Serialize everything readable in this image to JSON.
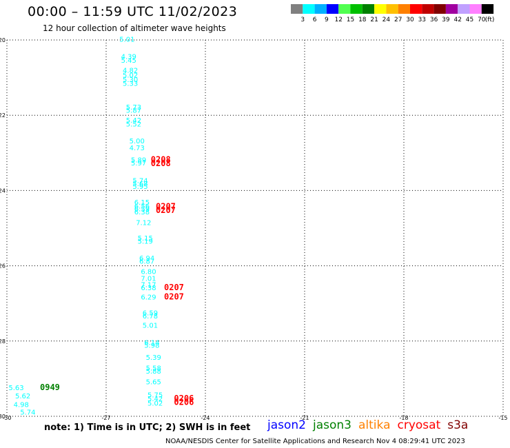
{
  "header": {
    "title": "00:00 – 11:59 UTC 11/02/2023",
    "subtitle": "12 hour collection of altimeter wave heights"
  },
  "colorbar": {
    "colors": [
      "#808080",
      "#00ffff",
      "#00b0ff",
      "#0000ff",
      "#50ff50",
      "#00c000",
      "#008000",
      "#ffff00",
      "#ffc000",
      "#ff8000",
      "#ff0000",
      "#c00000",
      "#800000",
      "#a000a0",
      "#c0a0ff",
      "#ff80ff",
      "#000000"
    ],
    "labels": [
      "3",
      "6",
      "9",
      "12",
      "15",
      "18",
      "21",
      "24",
      "27",
      "30",
      "33",
      "36",
      "39",
      "42",
      "45",
      "70"
    ],
    "unit": "(ft)"
  },
  "note": "note: 1) Time is in UTC; 2) SWH is in feet",
  "legend": [
    {
      "name": "jason2",
      "color": "#0000ff"
    },
    {
      "name": "jason3",
      "color": "#008000"
    },
    {
      "name": "altika",
      "color": "#ff8000"
    },
    {
      "name": "cryosat",
      "color": "#ff0000"
    },
    {
      "name": "s3a",
      "color": "#800000"
    }
  ],
  "credit": "NOAA/NESDIS Center for Satellite Applications and Research   Nov  4 08:29:41 UTC 2023",
  "chart_data": {
    "type": "scatter",
    "xlim": [
      -30,
      -15
    ],
    "ylim": [
      -30,
      -20
    ],
    "x_ticks": [
      "-30",
      "-27",
      "-24",
      "-21",
      "-18",
      "-15"
    ],
    "y_ticks": [
      "-20",
      "-22",
      "-24",
      "-26",
      "-28",
      "-30"
    ],
    "grid": true,
    "points": [
      {
        "x": -26.6,
        "y": -20.05,
        "label": "5.01",
        "color": "#00ffff"
      },
      {
        "x": -26.55,
        "y": -20.5,
        "label": "4.39",
        "color": "#00ffff"
      },
      {
        "x": -26.55,
        "y": -20.6,
        "label": "5.45",
        "color": "#00ffff"
      },
      {
        "x": -26.5,
        "y": -20.87,
        "label": "4.82",
        "color": "#00ffff"
      },
      {
        "x": -26.5,
        "y": -21.0,
        "label": "5.02",
        "color": "#00ffff"
      },
      {
        "x": -26.5,
        "y": -21.12,
        "label": "5.30",
        "color": "#00ffff"
      },
      {
        "x": -26.5,
        "y": -21.22,
        "label": "5.33",
        "color": "#00ffff"
      },
      {
        "x": -26.4,
        "y": -21.85,
        "label": "5.73",
        "color": "#00ffff"
      },
      {
        "x": -26.4,
        "y": -21.93,
        "label": "5.87",
        "color": "#00ffff"
      },
      {
        "x": -26.4,
        "y": -22.2,
        "label": "5.42",
        "color": "#00ffff"
      },
      {
        "x": -26.4,
        "y": -22.3,
        "label": "5.52",
        "color": "#00ffff"
      },
      {
        "x": -26.3,
        "y": -22.75,
        "label": "5.00",
        "color": "#00ffff"
      },
      {
        "x": -26.3,
        "y": -22.93,
        "label": "4.73",
        "color": "#00ffff"
      },
      {
        "x": -26.25,
        "y": -23.25,
        "label": "5.89",
        "color": "#00ffff"
      },
      {
        "x": -26.25,
        "y": -23.33,
        "label": "5.97",
        "color": "#00ffff"
      },
      {
        "x": -26.2,
        "y": -23.8,
        "label": "5.74",
        "color": "#00ffff"
      },
      {
        "x": -26.2,
        "y": -23.88,
        "label": "5.68",
        "color": "#00ffff"
      },
      {
        "x": -26.2,
        "y": -23.96,
        "label": "5.95",
        "color": "#00ffff"
      },
      {
        "x": -26.15,
        "y": -24.38,
        "label": "6.15",
        "color": "#00ffff"
      },
      {
        "x": -26.15,
        "y": -24.48,
        "label": "6.56",
        "color": "#00ffff"
      },
      {
        "x": -26.15,
        "y": -24.55,
        "label": "6.59",
        "color": "#00ffff"
      },
      {
        "x": -26.15,
        "y": -24.63,
        "label": "6.38",
        "color": "#00ffff"
      },
      {
        "x": -26.1,
        "y": -24.92,
        "label": "7.12",
        "color": "#00ffff"
      },
      {
        "x": -26.05,
        "y": -25.33,
        "label": "5.15",
        "color": "#00ffff"
      },
      {
        "x": -26.05,
        "y": -25.41,
        "label": "5.19",
        "color": "#00ffff"
      },
      {
        "x": -26.0,
        "y": -25.86,
        "label": "6.94",
        "color": "#00ffff"
      },
      {
        "x": -26.0,
        "y": -25.94,
        "label": "6.87",
        "color": "#00ffff"
      },
      {
        "x": -25.95,
        "y": -26.22,
        "label": "6.80",
        "color": "#00ffff"
      },
      {
        "x": -25.95,
        "y": -26.4,
        "label": "7.01",
        "color": "#00ffff"
      },
      {
        "x": -25.95,
        "y": -26.57,
        "label": "7.17",
        "color": "#00ffff"
      },
      {
        "x": -25.95,
        "y": -26.65,
        "label": "6.38",
        "color": "#00ffff"
      },
      {
        "x": -25.95,
        "y": -26.9,
        "label": "6.29",
        "color": "#00ffff"
      },
      {
        "x": -25.9,
        "y": -27.32,
        "label": "6.59",
        "color": "#00ffff"
      },
      {
        "x": -25.9,
        "y": -27.4,
        "label": "6.78",
        "color": "#00ffff"
      },
      {
        "x": -25.9,
        "y": -27.65,
        "label": "5.01",
        "color": "#00ffff"
      },
      {
        "x": -25.85,
        "y": -28.1,
        "label": "6.14",
        "color": "#00ffff"
      },
      {
        "x": -25.85,
        "y": -28.18,
        "label": "5.98",
        "color": "#00ffff"
      },
      {
        "x": -25.8,
        "y": -28.5,
        "label": "5.39",
        "color": "#00ffff"
      },
      {
        "x": -25.8,
        "y": -28.78,
        "label": "5.58",
        "color": "#00ffff"
      },
      {
        "x": -25.8,
        "y": -28.86,
        "label": "5.88",
        "color": "#00ffff"
      },
      {
        "x": -25.8,
        "y": -29.15,
        "label": "5.65",
        "color": "#00ffff"
      },
      {
        "x": -25.75,
        "y": -29.5,
        "label": "5.75",
        "color": "#00ffff"
      },
      {
        "x": -25.75,
        "y": -29.6,
        "label": "5.42",
        "color": "#00ffff"
      },
      {
        "x": -25.75,
        "y": -29.72,
        "label": "5.02",
        "color": "#00ffff"
      },
      {
        "x": -29.95,
        "y": -29.3,
        "label": "5.63",
        "color": "#00ffff"
      },
      {
        "x": -29.75,
        "y": -29.52,
        "label": "5.62",
        "color": "#00ffff"
      },
      {
        "x": -29.8,
        "y": -29.75,
        "label": "4.98",
        "color": "#00ffff"
      },
      {
        "x": -29.6,
        "y": -29.95,
        "label": "5.74",
        "color": "#00ffff"
      }
    ],
    "time_labels": [
      {
        "x": -25.65,
        "y": -23.25,
        "label": "0208",
        "color": "#ff0000"
      },
      {
        "x": -25.65,
        "y": -23.35,
        "label": "0208",
        "color": "#ff0000"
      },
      {
        "x": -25.5,
        "y": -24.5,
        "label": "0207",
        "color": "#ff0000"
      },
      {
        "x": -25.5,
        "y": -24.6,
        "label": "0207",
        "color": "#ff0000"
      },
      {
        "x": -25.25,
        "y": -26.65,
        "label": "0207",
        "color": "#ff0000"
      },
      {
        "x": -25.25,
        "y": -26.9,
        "label": "0207",
        "color": "#ff0000"
      },
      {
        "x": -24.95,
        "y": -29.6,
        "label": "0206",
        "color": "#ff0000"
      },
      {
        "x": -24.95,
        "y": -29.7,
        "label": "0206",
        "color": "#ff0000"
      },
      {
        "x": -29.0,
        "y": -29.3,
        "label": "0949",
        "color": "#008000"
      }
    ]
  }
}
